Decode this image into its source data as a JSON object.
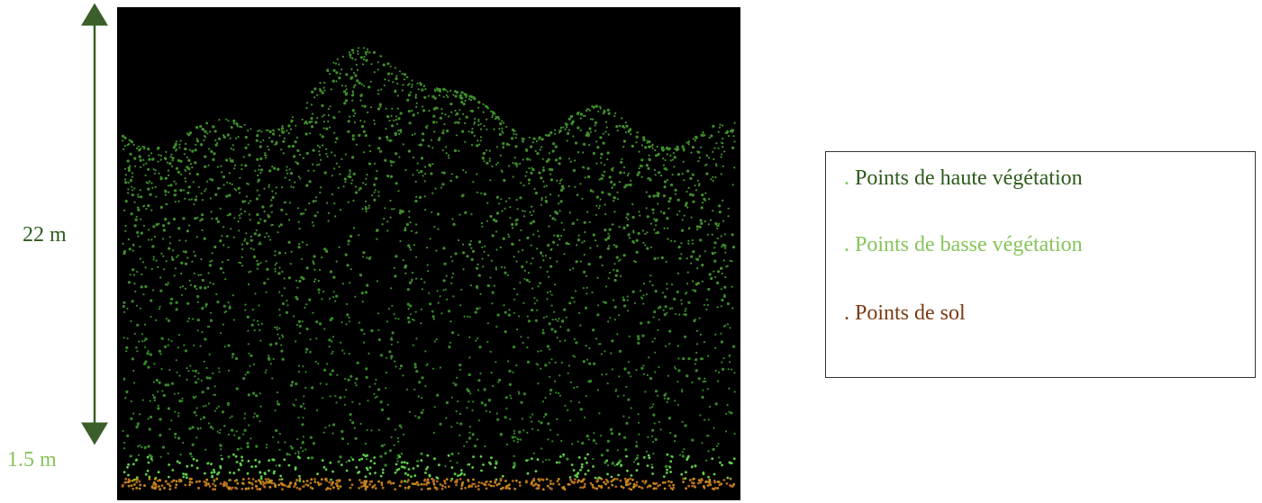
{
  "scale": {
    "top_label": "22 m",
    "bottom_label": "1.5 m"
  },
  "legend": {
    "items": [
      {
        "marker": ".",
        "label": "Points de haute végétation"
      },
      {
        "marker": ".",
        "label": "Points de basse végétation"
      },
      {
        "marker": ".",
        "label": "Points de sol"
      }
    ]
  }
}
